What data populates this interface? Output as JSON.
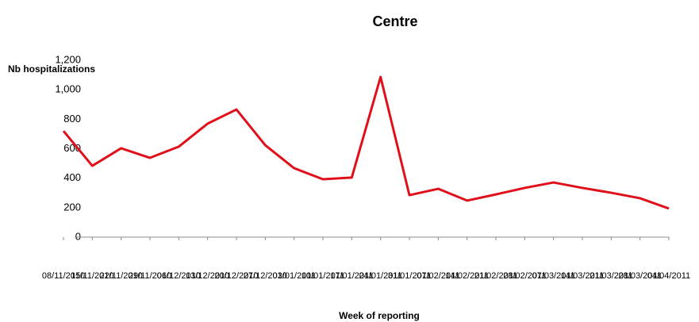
{
  "chart_data": {
    "type": "line",
    "title": "Centre",
    "y_label": "Nb hospitalizations",
    "x_label": "Week of reporting",
    "categories": [
      "08/11/2010",
      "15/11/2010",
      "22/11/2010",
      "29/11/2010",
      "06/12/2010",
      "13/12/2010",
      "20/12/2010",
      "27/12/2010",
      "03/01/2011",
      "10/01/2011",
      "17/01/2011",
      "24/01/2011",
      "31/01/2011",
      "07/02/2011",
      "14/02/2011",
      "21/02/2011",
      "28/02/2011",
      "07/03/2011",
      "14/03/2011",
      "21/03/2011",
      "28/03/2011",
      "04/04/2011"
    ],
    "series": [
      {
        "name": "Centre",
        "color": "#e0101b",
        "values": [
          720,
          484,
          603,
          538,
          614,
          770,
          866,
          624,
          468,
          393,
          404,
          1087,
          285,
          328,
          248,
          290,
          334,
          371,
          334,
          301,
          264,
          194
        ]
      }
    ],
    "ylim": [
      0,
      1200
    ],
    "yticks": [
      0,
      200,
      400,
      600,
      800,
      {
        "value": 1000,
        "label": "1,000"
      },
      {
        "value": 1200,
        "label": "1,200"
      }
    ],
    "grid": false
  }
}
